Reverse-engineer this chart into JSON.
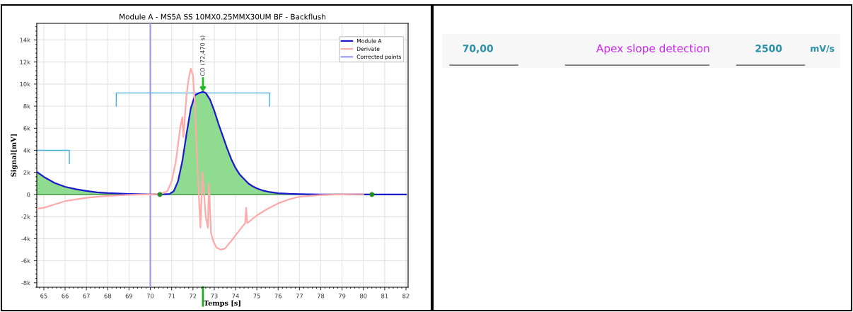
{
  "chart_data": [
    {
      "type": "line",
      "title": "Module A - MS5A SS 10MX0.25MMX30UM BF - Backflush",
      "xlabel": "Temps [s]",
      "ylabel": "Signal[mV]",
      "xlim": [
        64.67,
        82.1
      ],
      "ylim": [
        -8400,
        15500
      ],
      "xticks": [
        65,
        66,
        67,
        68,
        69,
        70,
        71,
        72,
        73,
        74,
        75,
        76,
        77,
        78,
        79,
        80,
        81,
        82
      ],
      "yticks": [
        {
          "value": -8000,
          "label": "-8k"
        },
        {
          "value": -6000,
          "label": "-6k"
        },
        {
          "value": -4000,
          "label": "-4k"
        },
        {
          "value": -2000,
          "label": "-2k"
        },
        0,
        {
          "value": 2000,
          "label": "2k"
        },
        {
          "value": 4000,
          "label": "4k"
        },
        {
          "value": 6000,
          "label": "6k"
        },
        {
          "value": 8000,
          "label": "8k"
        },
        {
          "value": 10000,
          "label": "10k"
        },
        {
          "value": 12000,
          "label": "12k"
        },
        {
          "value": 14000,
          "label": "14k"
        }
      ],
      "grid": true,
      "legend": "top right",
      "series": [
        {
          "name": "Derivate",
          "type": "line",
          "color": "#ffaaaa",
          "x": [
            64.67,
            65,
            65.5,
            66,
            66.5,
            67,
            67.5,
            68,
            69,
            70,
            70.5,
            70.8,
            71,
            71.2,
            71.4,
            71.5,
            71.55,
            71.7,
            71.8,
            71.9,
            72.0,
            72.1,
            72.2,
            72.35,
            72.45,
            72.6,
            72.7,
            72.75,
            72.8,
            72.85,
            72.95,
            73.1,
            73.3,
            73.5,
            73.8,
            74.2,
            74.45,
            74.5,
            74.55,
            74.8,
            75,
            75.5,
            76,
            76.5,
            77,
            78,
            79,
            80
          ],
          "values": [
            -1300,
            -1200,
            -900,
            -600,
            -450,
            -300,
            -200,
            -120,
            -30,
            0,
            50,
            300,
            1200,
            3000,
            6000,
            7000,
            5200,
            9000,
            10500,
            11400,
            10800,
            8000,
            3000,
            -3000,
            2000,
            -2000,
            -3000,
            1000,
            -1200,
            -3500,
            -4200,
            -4800,
            -5000,
            -4900,
            -4200,
            -3200,
            -2600,
            -1200,
            -2600,
            -2200,
            -1900,
            -1300,
            -800,
            -450,
            -200,
            -50,
            0,
            30
          ]
        },
        {
          "type": "area",
          "color": "#8fdb8f",
          "x": [
            64.67,
            65,
            65.5,
            66,
            66.5,
            67,
            67.5,
            68,
            69,
            70,
            70.5,
            70.9,
            71.1,
            71.3,
            71.5,
            71.7,
            71.9,
            72.1,
            72.3,
            72.47,
            72.6,
            72.8,
            73,
            73.2,
            73.4,
            73.6,
            73.8,
            74,
            74.2,
            74.4,
            74.6,
            74.8,
            75,
            75.3,
            75.6,
            76,
            76.5,
            77,
            78,
            79,
            80,
            80.4
          ],
          "values": [
            2050,
            1600,
            1050,
            700,
            480,
            320,
            200,
            130,
            50,
            10,
            0,
            50,
            300,
            1200,
            3000,
            5500,
            7800,
            9000,
            9200,
            9300,
            9200,
            8600,
            7600,
            6400,
            5300,
            4200,
            3200,
            2400,
            1800,
            1400,
            1000,
            750,
            550,
            350,
            220,
            120,
            60,
            30,
            10,
            0,
            0,
            0
          ]
        },
        {
          "type": "line",
          "color": "#2a8a2a",
          "x": [
            64.67,
            80.4
          ],
          "values": [
            0,
            0
          ]
        },
        {
          "name": "Module A",
          "type": "line",
          "color": "#1a1acc",
          "x": [
            64.67,
            65,
            65.5,
            66,
            66.5,
            67,
            67.5,
            68,
            69,
            70,
            70.5,
            70.9,
            71.1,
            71.3,
            71.5,
            71.7,
            71.9,
            72.1,
            72.3,
            72.47,
            72.6,
            72.8,
            73,
            73.2,
            73.4,
            73.6,
            73.8,
            74,
            74.2,
            74.4,
            74.6,
            74.8,
            75,
            75.3,
            75.6,
            76,
            76.5,
            77,
            78,
            79,
            80,
            80.4,
            81,
            82
          ],
          "values": [
            2050,
            1600,
            1050,
            700,
            480,
            320,
            200,
            130,
            50,
            10,
            0,
            50,
            300,
            1200,
            3000,
            5500,
            7800,
            9000,
            9200,
            9300,
            9200,
            8600,
            7600,
            6400,
            5300,
            4200,
            3200,
            2400,
            1800,
            1400,
            1000,
            750,
            550,
            350,
            220,
            120,
            60,
            30,
            10,
            0,
            0,
            0,
            0,
            0
          ]
        },
        {
          "type": "line",
          "color": "#3fb0e0",
          "x": [
            64.67,
            66.2,
            66.2
          ],
          "values": [
            4000,
            4000,
            2800
          ]
        },
        {
          "type": "line",
          "color": "#3fb0e0",
          "x": [
            68.4,
            68.4,
            75.6,
            75.6
          ],
          "values": [
            8000,
            9200,
            9200,
            8000
          ]
        },
        {
          "name": "Corrected points",
          "type": "line",
          "color": "#9a9af5",
          "x": [
            70,
            70
          ],
          "values": [
            -8400,
            15500
          ]
        },
        {
          "type": "scatter",
          "color": "#1e8c1e",
          "marker": "circle",
          "x": [
            70.45,
            80.4
          ],
          "values": [
            0,
            0
          ]
        }
      ],
      "annotations": [
        {
          "text": "CO (72,470 s)",
          "x": 72.47,
          "y": 9300
        }
      ]
    },
    {
      "type": "other",
      "annotations": [
        "70,00",
        "Apex slope detection",
        "2500",
        "mV/s"
      ]
    }
  ]
}
